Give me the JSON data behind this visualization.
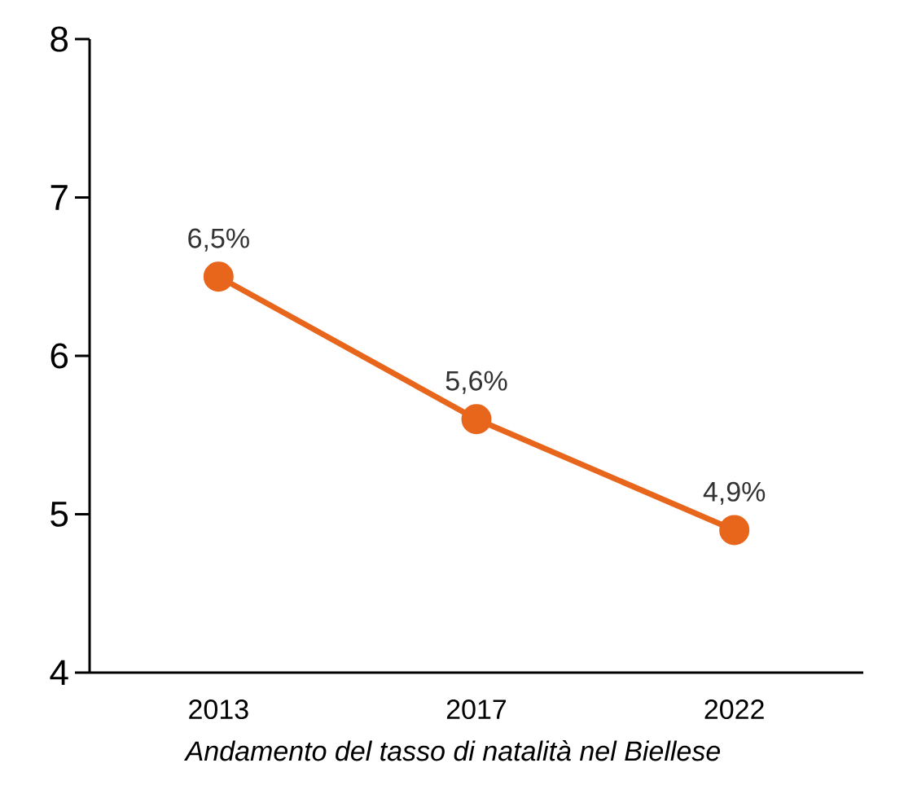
{
  "chart_data": {
    "type": "line",
    "xlabel": "*Andamento del tasso di natalità nel Biellese*",
    "categories": [
      "2013",
      "2017",
      "2022"
    ],
    "values": [
      6.5,
      5.6,
      4.9
    ],
    "value_labels": [
      "6,5%",
      "5,6%",
      "4,9%"
    ],
    "color": "#e8661c",
    "marker": "circle",
    "ylim": [
      4,
      8
    ],
    "yticks": [
      4,
      5,
      6,
      7,
      8
    ]
  }
}
